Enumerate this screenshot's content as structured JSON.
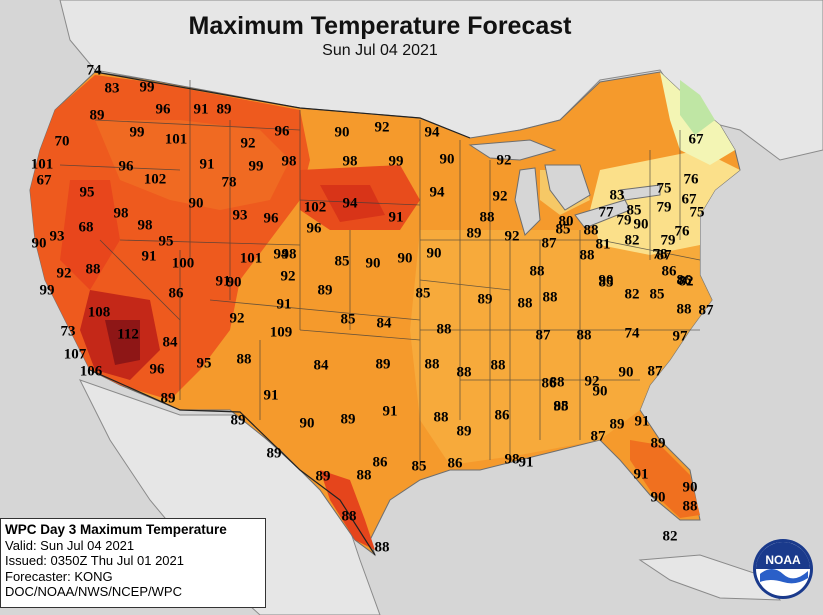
{
  "header": {
    "title": "Maximum Temperature Forecast",
    "subtitle": "Sun Jul 04 2021"
  },
  "colors": {
    "ocean": "#d9d9d9",
    "land_outside": "#e4e4e4",
    "very_hot": "#a01a1a",
    "hot": "#e0381c",
    "warm_red": "#f0601e",
    "orange": "#f5922a",
    "light_orange": "#f8b24a",
    "yellow": "#fbe28a",
    "pale_yellow": "#f5f5b0",
    "green": "#bfe8a8"
  },
  "forecast_values": [
    "74",
    "83",
    "99",
    "89",
    "96",
    "91",
    "89",
    "96",
    "90",
    "92",
    "94",
    "70",
    "99",
    "101",
    "92",
    "101",
    "96",
    "102",
    "91",
    "99",
    "98",
    "98",
    "99",
    "90",
    "92",
    "67",
    "78",
    "94",
    "92",
    "95",
    "98",
    "98",
    "90",
    "93",
    "96",
    "102",
    "94",
    "91",
    "88",
    "90",
    "93",
    "68",
    "95",
    "100",
    "96",
    "89",
    "92",
    "88",
    "91",
    "101",
    "94",
    "91",
    "98",
    "92",
    "85",
    "90",
    "90",
    "90",
    "88",
    "87",
    "88",
    "92",
    "99",
    "90",
    "89",
    "86",
    "85",
    "89",
    "88",
    "88",
    "85",
    "108",
    "91",
    "112",
    "92",
    "85",
    "84",
    "88",
    "73",
    "109",
    "82",
    "84",
    "84",
    "89",
    "88",
    "88",
    "87",
    "88",
    "74",
    "107",
    "106",
    "96",
    "95",
    "88",
    "97",
    "89",
    "91",
    "88",
    "86",
    "89",
    "90",
    "89",
    "91",
    "88",
    "86",
    "95",
    "89",
    "89",
    "88",
    "86",
    "85",
    "86",
    "98",
    "91",
    "88",
    "88",
    "89",
    "88",
    "88",
    "90",
    "92",
    "90",
    "87",
    "89",
    "87",
    "91",
    "89",
    "91",
    "90",
    "90",
    "88",
    "82",
    "88",
    "87",
    "82",
    "85",
    "86",
    "86",
    "87",
    "81",
    "79",
    "77",
    "83",
    "85",
    "90",
    "90",
    "88",
    "85",
    "80",
    "82",
    "78",
    "79",
    "76",
    "67",
    "79",
    "75",
    "75",
    "76",
    "67"
  ],
  "infobox": {
    "title": "WPC Day 3 Maximum Temperature",
    "valid": "Valid: Sun Jul 04 2021",
    "issued": "Issued: 0350Z Thu Jul 01 2021",
    "forecaster": "Forecaster: KONG",
    "source": "DOC/NOAA/NWS/NCEP/WPC"
  },
  "logo": {
    "text": "NOAA",
    "icon": "noaa-logo-icon"
  }
}
